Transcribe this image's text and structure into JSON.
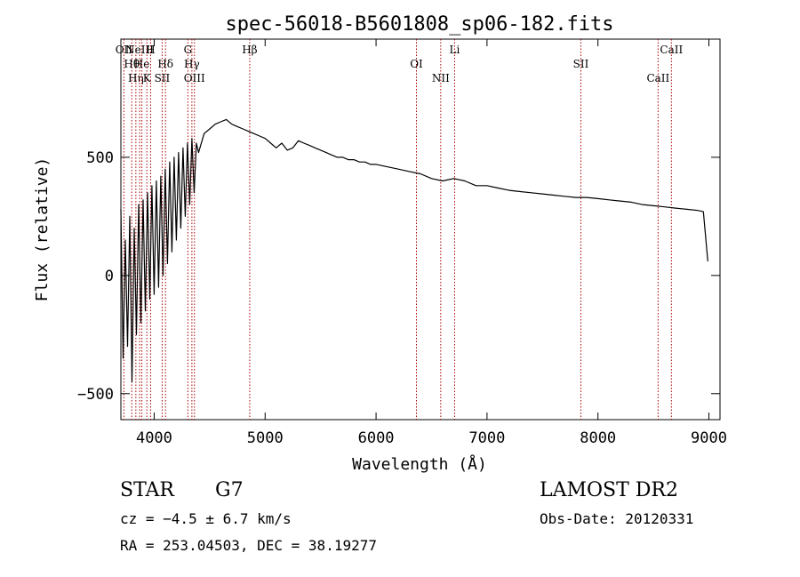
{
  "chart_data": {
    "type": "line",
    "title": "spec-56018-B5601808_sp06-182.fits",
    "xlabel": "Wavelength (Å)",
    "ylabel": "Flux (relative)",
    "xlim": [
      3700,
      9100
    ],
    "ylim": [
      -610,
      1000
    ],
    "x_ticks": [
      4000,
      5000,
      6000,
      7000,
      8000,
      9000
    ],
    "y_ticks": [
      -500,
      0,
      500
    ],
    "grid": false,
    "legend": "none",
    "line_color": "#000000",
    "marker_color": "#aa0000",
    "series": [
      {
        "x": [
          3700,
          3720,
          3740,
          3760,
          3780,
          3800,
          3820,
          3840,
          3860,
          3880,
          3900,
          3920,
          3940,
          3960,
          3980,
          4000,
          4020,
          4040,
          4060,
          4080,
          4100,
          4120,
          4140,
          4160,
          4180,
          4200,
          4220,
          4240,
          4260,
          4280,
          4300,
          4320,
          4340,
          4360,
          4380,
          4400,
          4450,
          4500,
          4550,
          4600,
          4650,
          4700,
          4750,
          4800,
          4850,
          4900,
          4950,
          5000,
          5050,
          5100,
          5150,
          5200,
          5250,
          5300,
          5350,
          5400,
          5450,
          5500,
          5550,
          5600,
          5650,
          5700,
          5750,
          5800,
          5850,
          5900,
          5950,
          6000,
          6100,
          6200,
          6300,
          6400,
          6500,
          6600,
          6700,
          6800,
          6900,
          7000,
          7100,
          7200,
          7300,
          7400,
          7500,
          7600,
          7700,
          7800,
          7900,
          8000,
          8100,
          8200,
          8300,
          8400,
          8500,
          8600,
          8700,
          8800,
          8900,
          8950,
          8990
        ],
        "y": [
          280,
          -350,
          150,
          -300,
          250,
          -450,
          200,
          -250,
          300,
          -200,
          320,
          -150,
          350,
          -100,
          380,
          -80,
          400,
          -50,
          420,
          0,
          450,
          50,
          480,
          100,
          500,
          150,
          520,
          200,
          540,
          250,
          560,
          300,
          580,
          350,
          560,
          520,
          600,
          620,
          640,
          650,
          660,
          640,
          630,
          620,
          610,
          600,
          590,
          580,
          560,
          540,
          560,
          530,
          540,
          570,
          560,
          550,
          540,
          530,
          520,
          510,
          500,
          500,
          490,
          490,
          480,
          480,
          470,
          470,
          460,
          450,
          440,
          430,
          410,
          400,
          410,
          400,
          380,
          380,
          370,
          360,
          355,
          350,
          345,
          340,
          335,
          330,
          330,
          325,
          320,
          315,
          310,
          300,
          295,
          290,
          285,
          280,
          275,
          270,
          60
        ]
      }
    ],
    "line_markers": [
      {
        "x": 3727,
        "label": "OII"
      },
      {
        "x": 3798,
        "label": "Hθ"
      },
      {
        "x": 3835,
        "label": "Hη"
      },
      {
        "x": 3869,
        "label": "NeIII"
      },
      {
        "x": 3889,
        "label": "He"
      },
      {
        "x": 3934,
        "label": "K"
      },
      {
        "x": 3968,
        "label": "H"
      },
      {
        "x": 4102,
        "label": "Hδ"
      },
      {
        "x": 4072,
        "label": "SII"
      },
      {
        "x": 4304,
        "label": "G"
      },
      {
        "x": 4340,
        "label": "Hγ"
      },
      {
        "x": 4363,
        "label": "OIII"
      },
      {
        "x": 4861,
        "label": "Hβ"
      },
      {
        "x": 6364,
        "label": "OI"
      },
      {
        "x": 6583,
        "label": "NII"
      },
      {
        "x": 6708,
        "label": "Li"
      },
      {
        "x": 7846,
        "label": "SII"
      },
      {
        "x": 8542,
        "label": "CaII"
      },
      {
        "x": 8662,
        "label": "CaII"
      }
    ]
  },
  "info": {
    "object_class": "STAR",
    "subclass": "G7",
    "cz": "cz = −4.5 ± 6.7 km/s",
    "radec": "RA = 253.04503, DEC =  38.19277",
    "survey": "LAMOST DR2",
    "obsdate": "Obs-Date: 20120331"
  }
}
